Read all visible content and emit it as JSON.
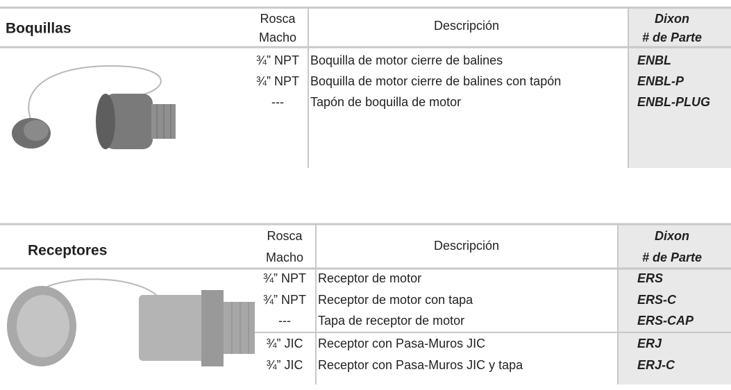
{
  "tables": [
    {
      "title": "Boquillas",
      "columns": {
        "thread": [
          "Rosca",
          "Macho"
        ],
        "description": "Descripción",
        "part": [
          "Dixon",
          "# de Parte"
        ]
      },
      "rows": [
        [
          "¾” NPT",
          "Boquilla de motor cierre de balines",
          "ENBL"
        ],
        [
          "¾” NPT",
          "Boquilla de motor cierre de balines con tapón",
          "ENBL-P"
        ],
        [
          "---",
          "Tapón de boquilla de motor",
          "ENBL-PLUG"
        ]
      ]
    },
    {
      "title": "Receptores",
      "columns": {
        "thread": [
          "Rosca",
          "Macho"
        ],
        "description": "Descripción",
        "part": [
          "Dixon",
          "# de Parte"
        ]
      },
      "rows": [
        [
          "¾” NPT",
          "Receptor de motor",
          "ERS"
        ],
        [
          "¾” NPT",
          "Receptor de motor con tapa",
          "ERS-C"
        ],
        [
          "---",
          "Tapa de receptor de motor",
          "ERS-CAP"
        ],
        [
          "¾” JIC",
          "Receptor con Pasa-Muros JIC",
          "ERJ"
        ],
        [
          "¾” JIC",
          "Receptor con Pasa-Muros JIC y tapa",
          "ERJ-C"
        ]
      ]
    }
  ]
}
